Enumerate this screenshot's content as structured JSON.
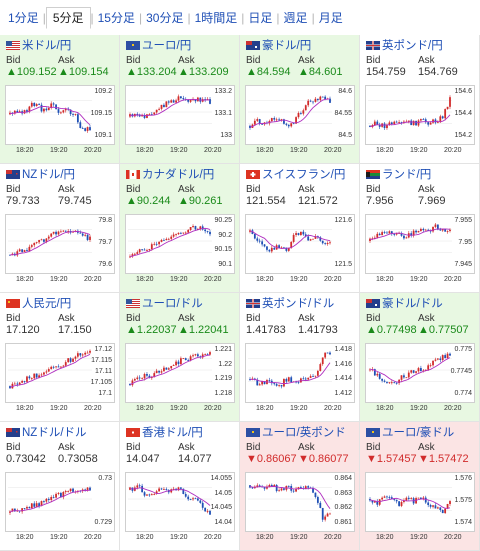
{
  "tabs": [
    "1分足",
    "5分足",
    "15分足",
    "30分足",
    "1時間足",
    "日足",
    "週足",
    "月足"
  ],
  "active_tab": 1,
  "labels": {
    "bid": "Bid",
    "ask": "Ask"
  },
  "pairs": [
    {
      "name": "米ドル/円",
      "flag": "us",
      "trend": "up",
      "bid": "▲109.152",
      "ask": "▲109.154",
      "yticks": [
        "109.2",
        "109.15",
        "109.1"
      ],
      "xticks": [
        "18:20",
        "19:20",
        "20:20"
      ]
    },
    {
      "name": "ユーロ/円",
      "flag": "eu",
      "trend": "up",
      "bid": "▲133.204",
      "ask": "▲133.209",
      "yticks": [
        "133.2",
        "133.1",
        "133"
      ],
      "xticks": [
        "18:20",
        "19:20",
        "20:20"
      ]
    },
    {
      "name": "豪ドル/円",
      "flag": "au",
      "trend": "up",
      "bid": "▲84.594",
      "ask": "▲84.601",
      "yticks": [
        "84.6",
        "84.55",
        "84.5"
      ],
      "xticks": [
        "18:20",
        "19:20",
        "20:20"
      ]
    },
    {
      "name": "英ポンド/円",
      "flag": "uk",
      "trend": "neutral",
      "bid": "154.759",
      "ask": "154.769",
      "yticks": [
        "154.6",
        "154.4",
        "154.2"
      ],
      "xticks": [
        "18:20",
        "19:20",
        "20:20"
      ]
    },
    {
      "name": "NZドル/円",
      "flag": "nz",
      "trend": "neutral",
      "bid": "79.733",
      "ask": "79.745",
      "yticks": [
        "79.8",
        "79.7",
        "79.6"
      ],
      "xticks": [
        "18:20",
        "19:20",
        "20:20"
      ]
    },
    {
      "name": "カナダドル/円",
      "flag": "ca",
      "trend": "up",
      "bid": "▲90.244",
      "ask": "▲90.261",
      "yticks": [
        "90.25",
        "90.2",
        "90.15",
        "90.1"
      ],
      "xticks": [
        "18:20",
        "19:20",
        "20:20"
      ]
    },
    {
      "name": "スイスフラン/円",
      "flag": "ch",
      "trend": "neutral",
      "bid": "121.554",
      "ask": "121.572",
      "yticks": [
        "121.6",
        "121.5"
      ],
      "xticks": [
        "18:20",
        "19:20",
        "20:20"
      ]
    },
    {
      "name": "ランド/円",
      "flag": "za",
      "trend": "neutral",
      "bid": "7.956",
      "ask": "7.969",
      "yticks": [
        "7.955",
        "7.95",
        "7.945"
      ],
      "xticks": [
        "18:20",
        "19:20",
        "20:20"
      ]
    },
    {
      "name": "人民元/円",
      "flag": "cn",
      "trend": "neutral",
      "bid": "17.120",
      "ask": "17.150",
      "yticks": [
        "17.12",
        "17.115",
        "17.11",
        "17.105",
        "17.1"
      ],
      "xticks": [
        "18:20",
        "19:20",
        "20:20"
      ]
    },
    {
      "name": "ユーロ/ドル",
      "flag": "us",
      "trend": "up",
      "bid": "▲1.22037",
      "ask": "▲1.22041",
      "yticks": [
        "1.221",
        "1.22",
        "1.219",
        "1.218"
      ],
      "xticks": [
        "18:20",
        "19:20",
        "20:20"
      ]
    },
    {
      "name": "英ポンド/ドル",
      "flag": "uk",
      "trend": "neutral",
      "bid": "1.41783",
      "ask": "1.41793",
      "yticks": [
        "1.418",
        "1.416",
        "1.414",
        "1.412"
      ],
      "xticks": [
        "18:20",
        "19:20",
        "20:20"
      ]
    },
    {
      "name": "豪ドル/ドル",
      "flag": "au",
      "trend": "up",
      "bid": "▲0.77498",
      "ask": "▲0.77507",
      "yticks": [
        "0.775",
        "0.7745",
        "0.774"
      ],
      "xticks": [
        "18:20",
        "19:20",
        "20:20"
      ]
    },
    {
      "name": "NZドル/ドル",
      "flag": "nz",
      "trend": "neutral",
      "bid": "0.73042",
      "ask": "0.73058",
      "yticks": [
        "0.73",
        "0.729"
      ],
      "xticks": [
        "18:20",
        "19:20",
        "20:20"
      ]
    },
    {
      "name": "香港ドル/円",
      "flag": "hk",
      "trend": "neutral",
      "bid": "14.047",
      "ask": "14.077",
      "yticks": [
        "14.055",
        "14.05",
        "14.045",
        "14.04"
      ],
      "xticks": [
        "18:20",
        "19:20",
        "20:20"
      ]
    },
    {
      "name": "ユーロ/英ポンド",
      "flag": "eu",
      "trend": "dn",
      "bid": "▼0.86067",
      "ask": "▼0.86077",
      "yticks": [
        "0.864",
        "0.863",
        "0.862",
        "0.861"
      ],
      "xticks": [
        "18:20",
        "19:20",
        "20:20"
      ]
    },
    {
      "name": "ユーロ/豪ドル",
      "flag": "eu",
      "trend": "dn",
      "bid": "▼1.57457",
      "ask": "▼1.57472",
      "yticks": [
        "1.576",
        "1.575",
        "1.574"
      ],
      "xticks": [
        "18:20",
        "19:20",
        "20:20"
      ]
    }
  ],
  "colors": {
    "up": "#1a8a1a",
    "down": "#d12b2b",
    "link": "#1f4fb5",
    "candle_up": "#d12b2b",
    "candle_dn": "#1f4fb5",
    "ma": "#b030c0"
  }
}
